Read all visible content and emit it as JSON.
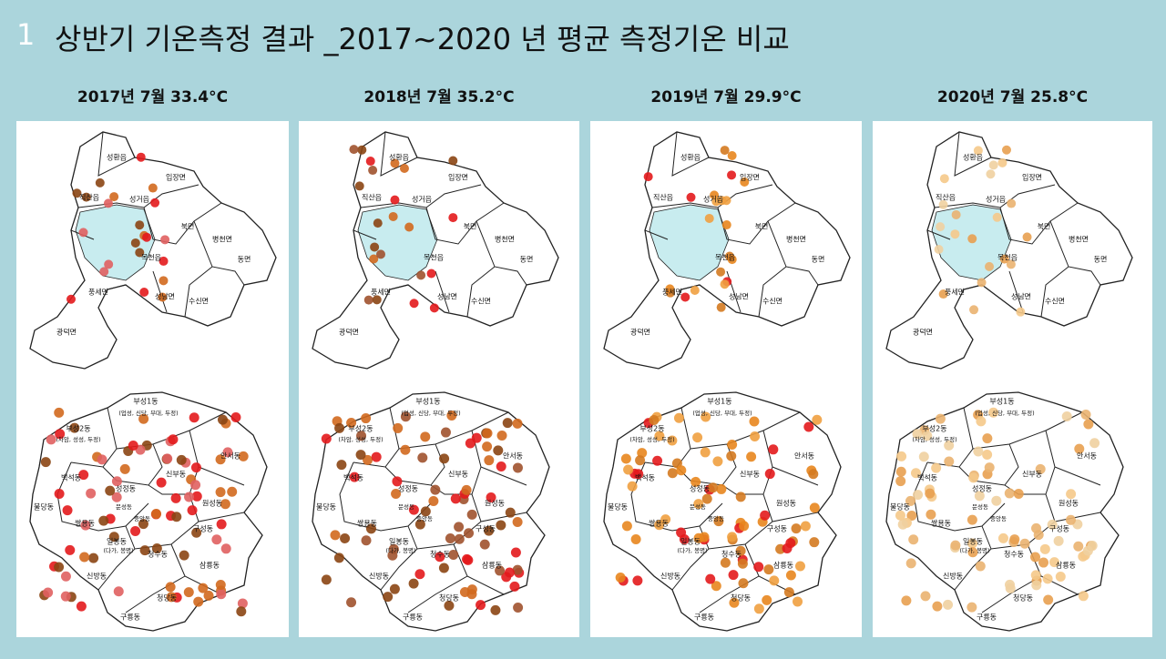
{
  "slide_number": "1",
  "title": "상반기 기온측정 결과 _2017~2020 년 평균 측정기온 비교",
  "panels": [
    {
      "header": "2017년 7월 33.4°C"
    },
    {
      "header": "2018년 7월 35.2°C"
    },
    {
      "header": "2019년 7월 29.9°C"
    },
    {
      "header": "2020년 7월 25.8°C"
    }
  ],
  "upper_map_labels": [
    "성환읍",
    "입장면",
    "직산읍",
    "성거읍",
    "북면",
    "병천면",
    "목천읍",
    "동면",
    "풍세면",
    "성남면",
    "수신면",
    "광덕면"
  ],
  "lower_map_labels": [
    "부성1동",
    "(업성, 신당, 부대, 두정)",
    "부성2동",
    "(차암, 성성, 두정)",
    "안서동",
    "백석동",
    "신부동",
    "성정동",
    "원성동",
    "불당동",
    "쌍용동",
    "문성동",
    "중앙동",
    "구성동",
    "일봉동",
    "(다가, 봉명)",
    "청수동",
    "삼룡동",
    "신방동",
    "청당동",
    "구룡동"
  ]
}
